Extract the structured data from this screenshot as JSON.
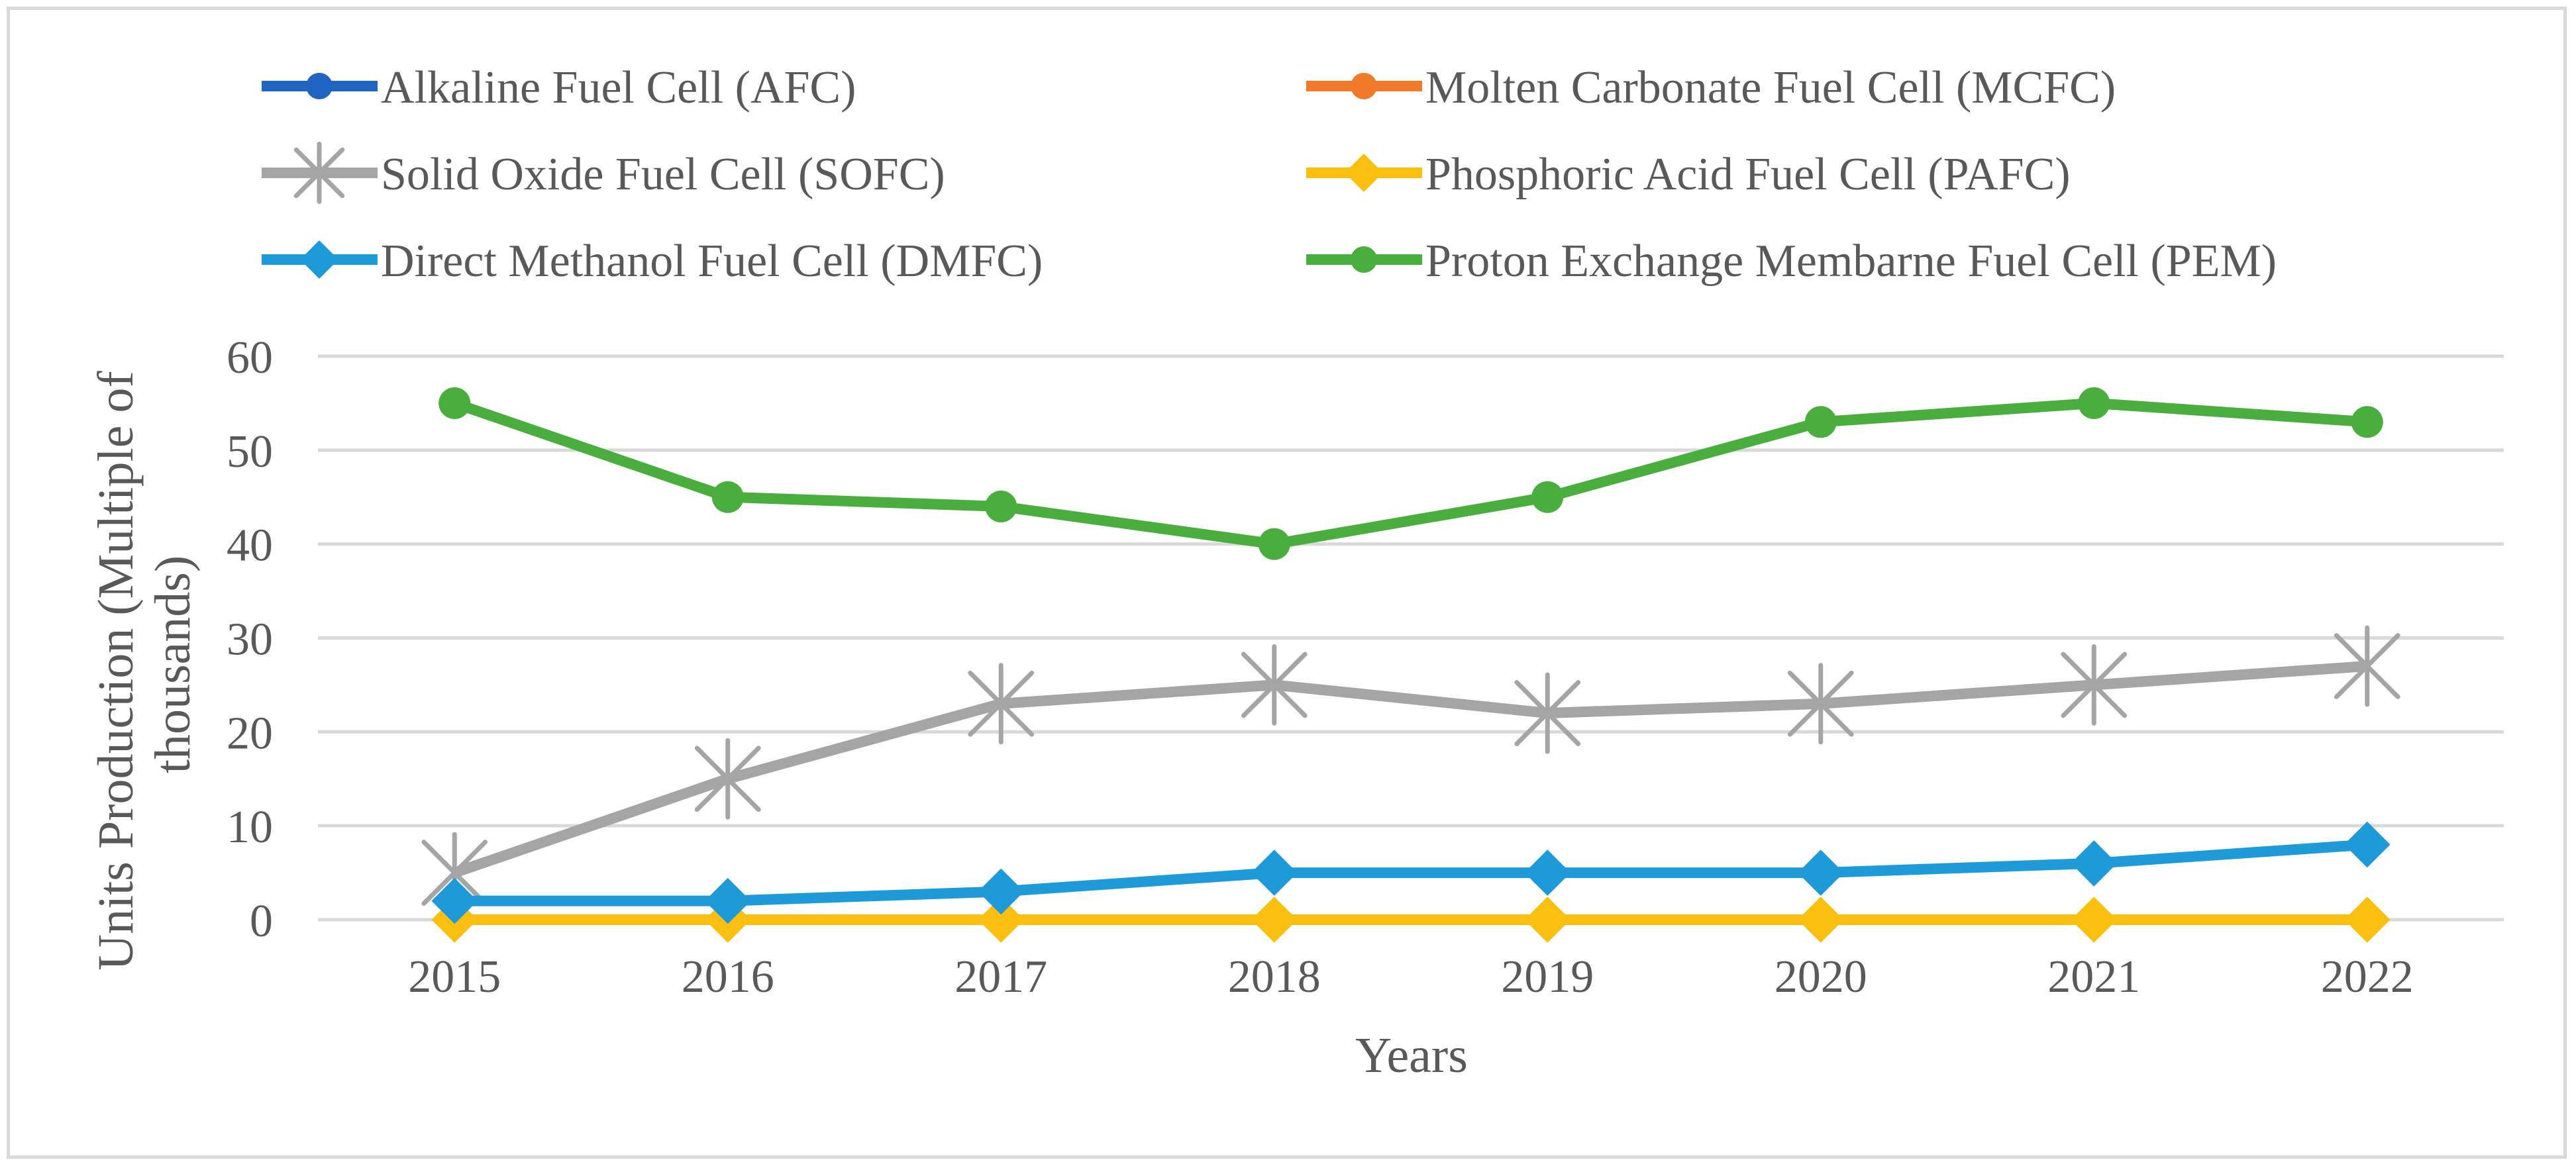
{
  "chart_data": {
    "type": "line",
    "title": "",
    "xlabel": "Years",
    "ylabel_lines": [
      "Units Production (Multiple of",
      "thousands)"
    ],
    "ylim": [
      0,
      60
    ],
    "yticks": [
      0,
      10,
      20,
      30,
      40,
      50,
      60
    ],
    "grid": true,
    "legend_position": "top",
    "categories": [
      "2015",
      "2016",
      "2017",
      "2018",
      "2019",
      "2020",
      "2021",
      "2022"
    ],
    "series": [
      {
        "name": "Alkaline Fuel Cell (AFC)",
        "color": "#1f64c0",
        "marker": "circle",
        "values": [
          0,
          0,
          0,
          0,
          0,
          0,
          0,
          0
        ]
      },
      {
        "name": "Molten Carbonate Fuel Cell (MCFC)",
        "color": "#f07a2a",
        "marker": "circle",
        "values": [
          0,
          0,
          0,
          0,
          0,
          0,
          0,
          0
        ]
      },
      {
        "name": "Solid Oxide Fuel Cell (SOFC)",
        "color": "#a5a5a5",
        "marker": "star",
        "values": [
          5,
          15,
          23,
          25,
          22,
          23,
          25,
          27
        ]
      },
      {
        "name": "Phosphoric Acid Fuel Cell (PAFC)",
        "color": "#fbbf0f",
        "marker": "diamond",
        "values": [
          0,
          0,
          0,
          0,
          0,
          0,
          0,
          0
        ]
      },
      {
        "name": "Direct Methanol Fuel Cell (DMFC)",
        "color": "#1e9ad8",
        "marker": "diamond",
        "values": [
          2,
          2,
          3,
          5,
          5,
          5,
          6,
          8
        ]
      },
      {
        "name": "Proton Exchange Membarne Fuel Cell (PEM)",
        "color": "#4aae3f",
        "marker": "circle",
        "values": [
          55,
          45,
          44,
          40,
          45,
          53,
          55,
          53
        ]
      }
    ]
  }
}
